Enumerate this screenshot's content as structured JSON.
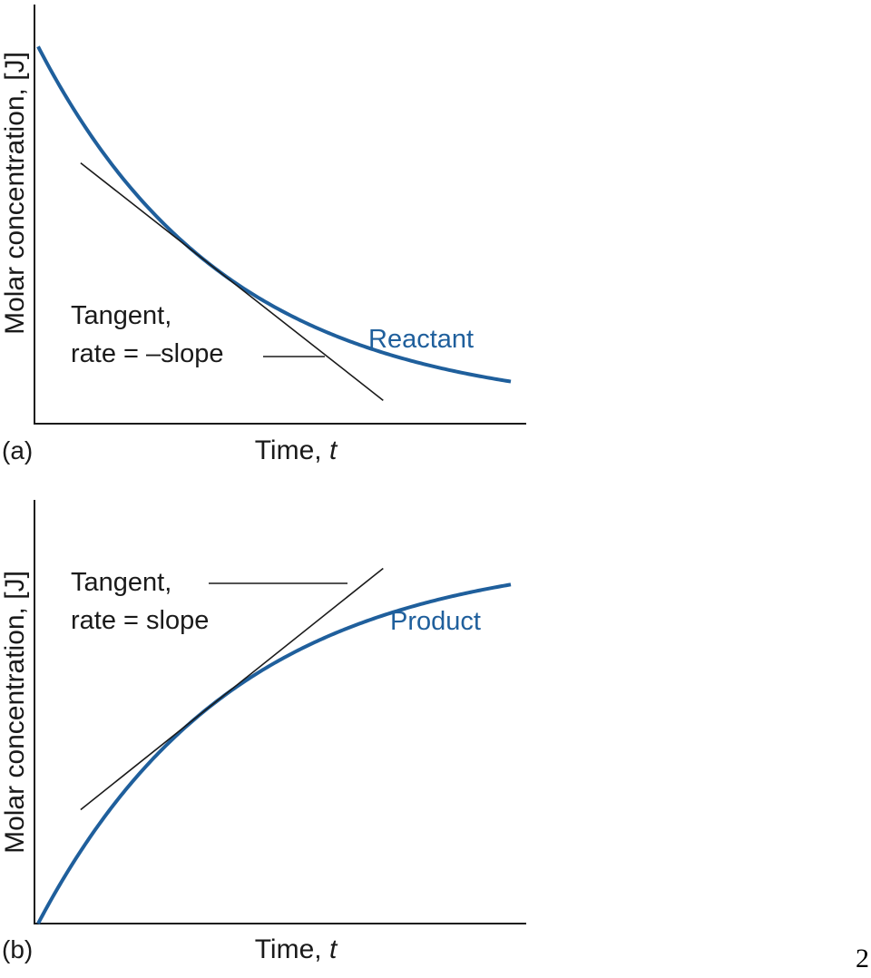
{
  "colors": {
    "curve": "#1f5f9c",
    "ink": "#1a1a1a"
  },
  "page_number": "2",
  "chart_data": [
    {
      "type": "line",
      "panel": "(a)",
      "title": "",
      "xlabel": "Time, t",
      "xlabel_prefix": "Time,",
      "xlabel_var": "t",
      "ylabel": "Molar concentration, [J]",
      "ticks": false,
      "grid": false,
      "series": [
        {
          "name": "Reactant",
          "kind": "exponential-decay",
          "y0": 0.93,
          "y_end": 0.03,
          "k": 2.5
        }
      ],
      "annotation": {
        "lines": [
          "Tangent,",
          "rate = –slope"
        ],
        "tangent_at_x": 0.36
      }
    },
    {
      "type": "line",
      "panel": "(b)",
      "title": "",
      "xlabel": "Time, t",
      "xlabel_prefix": "Time,",
      "xlabel_var": "t",
      "ylabel": "Molar concentration, [J]",
      "ticks": false,
      "grid": false,
      "series": [
        {
          "name": "Product",
          "kind": "exponential-rise",
          "y_start": 0.0,
          "y_end": 0.88,
          "k": 2.4
        }
      ],
      "annotation": {
        "lines": [
          "Tangent,",
          "rate = slope"
        ],
        "tangent_at_x": 0.36
      }
    }
  ]
}
